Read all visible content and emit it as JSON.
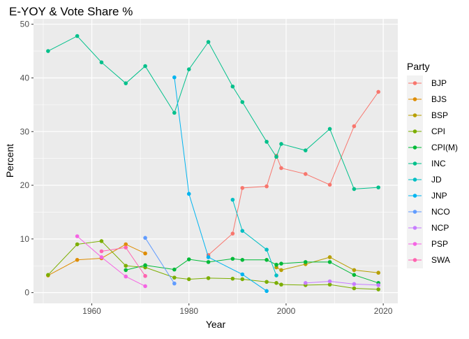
{
  "chart_data": {
    "type": "line",
    "title": "E-YOY & Vote Share %",
    "xlabel": "Year",
    "ylabel": "Percent",
    "xlim": [
      1948,
      2023
    ],
    "ylim": [
      -2,
      51
    ],
    "xticks": [
      1960,
      1980,
      2000,
      2020
    ],
    "yticks": [
      0,
      10,
      20,
      30,
      40,
      50
    ],
    "grid": true,
    "legend": {
      "title": "Party",
      "placement": "right"
    },
    "series": [
      {
        "name": "BJP",
        "color": "#F8766D",
        "x": [
          1984,
          1989,
          1991,
          1996,
          1998,
          1999,
          2004,
          2009,
          2014,
          2019
        ],
        "y": [
          7.0,
          11.0,
          19.5,
          19.8,
          25.5,
          23.2,
          22.1,
          20.1,
          31.0,
          37.4
        ]
      },
      {
        "name": "BJS",
        "color": "#DE8C00",
        "x": [
          1951,
          1957,
          1962,
          1967,
          1971
        ],
        "y": [
          3.2,
          6.1,
          6.4,
          9.0,
          7.3
        ]
      },
      {
        "name": "BSP",
        "color": "#B79F00",
        "x": [
          1998,
          1999,
          2004,
          2009,
          2014,
          2019
        ],
        "y": [
          4.7,
          4.2,
          5.3,
          6.6,
          4.2,
          3.7
        ]
      },
      {
        "name": "CPI",
        "color": "#7CAE00",
        "x": [
          1951,
          1957,
          1962,
          1967,
          1971,
          1977,
          1980,
          1984,
          1989,
          1991,
          1996,
          1998,
          1999,
          2004,
          2009,
          2014,
          2019
        ],
        "y": [
          3.3,
          9.0,
          9.6,
          5.0,
          4.7,
          2.8,
          2.5,
          2.7,
          2.6,
          2.5,
          2.0,
          1.8,
          1.5,
          1.4,
          1.5,
          0.8,
          0.6
        ]
      },
      {
        "name": "CPI(M)",
        "color": "#00BA38",
        "x": [
          1967,
          1971,
          1977,
          1980,
          1984,
          1989,
          1991,
          1996,
          1998,
          1999,
          2004,
          2009,
          2014,
          2019
        ],
        "y": [
          4.2,
          5.1,
          4.3,
          6.2,
          5.7,
          6.3,
          6.1,
          6.1,
          5.2,
          5.4,
          5.7,
          5.7,
          3.3,
          1.8
        ]
      },
      {
        "name": "INC",
        "color": "#00C08B",
        "x": [
          1951,
          1957,
          1962,
          1967,
          1971,
          1977,
          1980,
          1984,
          1989,
          1991,
          1996,
          1998,
          1999,
          2004,
          2009,
          2014,
          2019
        ],
        "y": [
          45.0,
          47.8,
          42.9,
          39.0,
          42.2,
          33.5,
          41.6,
          46.7,
          38.4,
          35.5,
          28.1,
          25.3,
          27.7,
          26.5,
          30.5,
          19.3,
          19.6
        ]
      },
      {
        "name": "JD",
        "color": "#00BFC4",
        "x": [
          1989,
          1991,
          1996,
          1998
        ],
        "y": [
          17.3,
          11.5,
          8.0,
          3.2
        ]
      },
      {
        "name": "JNP",
        "color": "#00B4F0",
        "x": [
          1977,
          1980,
          1984,
          1991,
          1996
        ],
        "y": [
          40.1,
          18.4,
          6.6,
          3.4,
          0.3
        ]
      },
      {
        "name": "NCO",
        "color": "#619CFF",
        "x": [
          1971,
          1977
        ],
        "y": [
          10.2,
          1.7
        ]
      },
      {
        "name": "NCP",
        "color": "#C77CFF",
        "x": [
          2004,
          2009,
          2014,
          2019
        ],
        "y": [
          1.8,
          2.1,
          1.6,
          1.4
        ]
      },
      {
        "name": "PSP",
        "color": "#F564E3",
        "x": [
          1957,
          1962,
          1967,
          1971
        ],
        "y": [
          10.5,
          6.6,
          3.0,
          1.2
        ]
      },
      {
        "name": "SWA",
        "color": "#FF64B0",
        "x": [
          1962,
          1967,
          1971
        ],
        "y": [
          7.7,
          8.4,
          3.1
        ]
      }
    ]
  }
}
